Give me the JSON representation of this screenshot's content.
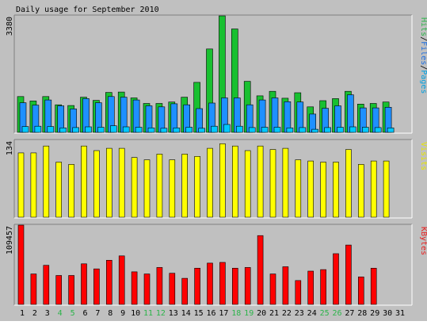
{
  "chart_data": [
    {
      "type": "bar",
      "title": "Daily usage for September 2010",
      "ylabel_parts": [
        {
          "text": "Pages",
          "color": "#00a0e0"
        },
        {
          "text": "/",
          "color": "#000000"
        },
        {
          "text": "Files",
          "color": "#1e6fe0"
        },
        {
          "text": "/",
          "color": "#000000"
        },
        {
          "text": "Hits",
          "color": "#2cb44a"
        }
      ],
      "y_tick_label": "3380",
      "ylim": [
        0,
        3380
      ],
      "categories": [
        "1",
        "2",
        "3",
        "4",
        "5",
        "6",
        "7",
        "8",
        "9",
        "10",
        "11",
        "12",
        "13",
        "14",
        "15",
        "16",
        "17",
        "18",
        "19",
        "20",
        "21",
        "22",
        "23",
        "24",
        "25",
        "26",
        "27",
        "28",
        "29",
        "30",
        "31"
      ],
      "series": [
        {
          "name": "Hits",
          "color": "#18c030",
          "values": [
            1040,
            910,
            1040,
            800,
            780,
            1020,
            930,
            1160,
            1170,
            1000,
            840,
            840,
            880,
            1020,
            1450,
            2420,
            3380,
            3000,
            1480,
            1060,
            1190,
            990,
            1150,
            740,
            920,
            980,
            1190,
            820,
            840,
            880,
            0
          ]
        },
        {
          "name": "Files",
          "color": "#1e90ff",
          "values": [
            860,
            790,
            940,
            770,
            680,
            980,
            860,
            1040,
            1020,
            940,
            770,
            740,
            830,
            800,
            690,
            850,
            1000,
            1000,
            800,
            940,
            1000,
            890,
            880,
            530,
            700,
            770,
            1090,
            710,
            710,
            730,
            0
          ]
        },
        {
          "name": "Pages",
          "color": "#00c8ff",
          "values": [
            170,
            180,
            170,
            130,
            140,
            160,
            150,
            190,
            160,
            150,
            130,
            120,
            130,
            150,
            120,
            180,
            230,
            180,
            140,
            150,
            150,
            130,
            140,
            90,
            140,
            150,
            160,
            150,
            140,
            130,
            0
          ]
        }
      ]
    },
    {
      "type": "bar",
      "ylabel": "Visits",
      "ylabel_color": "#e8e800",
      "y_tick_label": "134",
      "ylim": [
        0,
        134
      ],
      "categories": [
        "1",
        "2",
        "3",
        "4",
        "5",
        "6",
        "7",
        "8",
        "9",
        "10",
        "11",
        "12",
        "13",
        "14",
        "15",
        "16",
        "17",
        "18",
        "19",
        "20",
        "21",
        "22",
        "23",
        "24",
        "25",
        "26",
        "27",
        "28",
        "29",
        "30",
        "31"
      ],
      "series": [
        {
          "name": "Visits",
          "color": "#ffff00",
          "values": [
            112,
            112,
            124,
            96,
            92,
            124,
            116,
            120,
            120,
            104,
            100,
            110,
            100,
            110,
            106,
            120,
            128,
            124,
            116,
            124,
            118,
            120,
            100,
            98,
            96,
            96,
            118,
            92,
            98,
            98,
            0
          ]
        }
      ]
    },
    {
      "type": "bar",
      "ylabel": "KBytes",
      "ylabel_color": "#e82020",
      "y_tick_label": "109457",
      "ylim": [
        0,
        109457
      ],
      "categories": [
        "1",
        "2",
        "3",
        "4",
        "5",
        "6",
        "7",
        "8",
        "9",
        "10",
        "11",
        "12",
        "13",
        "14",
        "15",
        "16",
        "17",
        "18",
        "19",
        "20",
        "21",
        "22",
        "23",
        "24",
        "25",
        "26",
        "27",
        "28",
        "29",
        "30",
        "31"
      ],
      "series": [
        {
          "name": "KBytes",
          "color": "#ff0000",
          "values": [
            109457,
            42000,
            54000,
            40000,
            40000,
            56000,
            49000,
            61000,
            67000,
            45000,
            42000,
            51000,
            43000,
            36000,
            50000,
            57000,
            58000,
            50000,
            51000,
            95000,
            42000,
            52000,
            33000,
            46000,
            48000,
            70000,
            82000,
            38000,
            50000,
            0,
            0
          ]
        }
      ]
    }
  ],
  "x_label_colors": {
    "weekday": "#000000",
    "weekend": "#2cb44a",
    "weekend_days": [
      "4",
      "5",
      "11",
      "12",
      "18",
      "19",
      "25",
      "26"
    ]
  },
  "colors": {
    "background": "#c0c0c0",
    "plot_background": "#c0c0c0"
  }
}
